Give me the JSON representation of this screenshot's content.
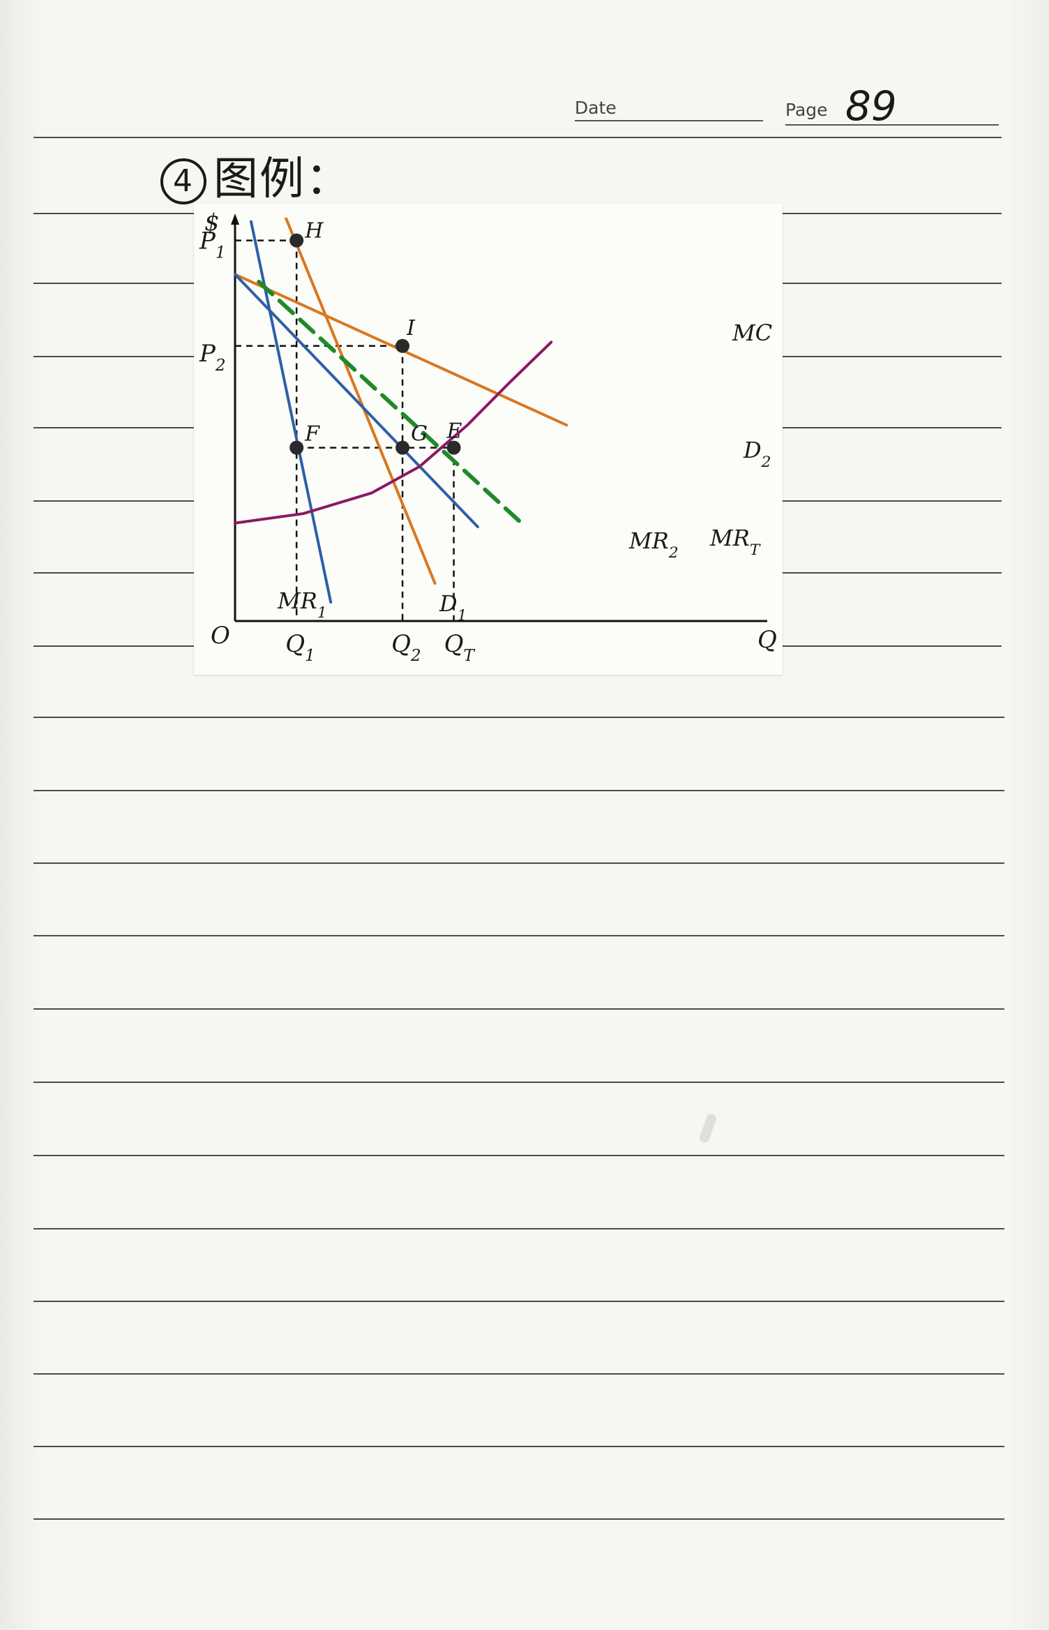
{
  "notebook": {
    "date_label": "Date",
    "page_label": "Page",
    "page_number": "89",
    "heading_number": "4",
    "heading_text": "图例："
  },
  "chart_data": {
    "type": "line",
    "title": "",
    "xlabel": "Q",
    "ylabel": "$",
    "origin_label": "O",
    "x_tick_labels": [
      "Q1",
      "Q2",
      "QT"
    ],
    "y_tick_labels": [
      "P1",
      "P2"
    ],
    "xlim": [
      0,
      100
    ],
    "ylim": [
      0,
      100
    ],
    "series": [
      {
        "name": "D1",
        "color": "#d9771f",
        "style": "solid",
        "x": [
          13.5,
          58.5
        ],
        "y": [
          110,
          10
        ]
      },
      {
        "name": "D2",
        "color": "#d9771f",
        "style": "solid",
        "x": [
          0,
          97
        ],
        "y": [
          92,
          52
        ]
      },
      {
        "name": "MR1",
        "color": "#2e5fa8",
        "style": "solid",
        "x": [
          4.7,
          28
        ],
        "y": [
          106,
          5
        ]
      },
      {
        "name": "MR2",
        "color": "#2e5fa8",
        "style": "solid",
        "x": [
          0,
          71
        ],
        "y": [
          92,
          25
        ]
      },
      {
        "name": "MRT",
        "color": "#1f8a2a",
        "style": "dashed",
        "x": [
          7,
          85
        ],
        "y": [
          90,
          25
        ]
      },
      {
        "name": "MC",
        "color": "#8b1a60",
        "style": "solid",
        "x": [
          0,
          20,
          40,
          54,
          68,
          80,
          92.5
        ],
        "y": [
          26,
          28.5,
          34,
          41,
          52,
          63,
          74
        ]
      }
    ],
    "points": [
      {
        "label": "H",
        "x": 18,
        "y": 101
      },
      {
        "label": "I",
        "x": 49,
        "y": 73
      },
      {
        "label": "F",
        "x": 18,
        "y": 46
      },
      {
        "label": "G",
        "x": 49,
        "y": 46
      },
      {
        "label": "E",
        "x": 64,
        "y": 46
      }
    ],
    "reference_lines": [
      {
        "from": "P1",
        "to": "H"
      },
      {
        "from": "P2",
        "to": "I"
      },
      {
        "from": "F",
        "to": "E"
      },
      {
        "from": "H",
        "to": "Q1"
      },
      {
        "from": "I",
        "to": "Q2"
      },
      {
        "from": "E",
        "to": "QT"
      }
    ]
  }
}
